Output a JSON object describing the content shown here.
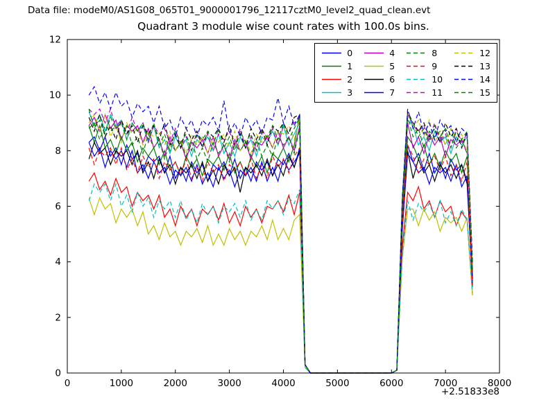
{
  "header": {
    "datafile_label": "Data file: modeM0/AS1G08_065T01_9000001796_12117cztM0_level2_quad_clean.evt"
  },
  "chart_data": {
    "type": "line",
    "title": "Quadrant 3 module wise count rates with 100.0s bins.",
    "xlabel": "",
    "ylabel": "",
    "x_offset_label": "+2.51833e8",
    "xlim": [
      0,
      8000
    ],
    "ylim": [
      0,
      12
    ],
    "xticks": [
      0,
      1000,
      2000,
      3000,
      4000,
      5000,
      6000,
      7000,
      8000
    ],
    "yticks": [
      0,
      2,
      4,
      6,
      8,
      10,
      12
    ],
    "grid": false,
    "legend_position": "upper right inside, 4 columns",
    "x_start": 400,
    "x_step": 100,
    "series": [
      {
        "name": "0",
        "color": "#0000ff",
        "dash": false,
        "values": [
          8.3,
          8.5,
          8.0,
          8.5,
          7.8,
          8.1,
          7.5,
          8.2,
          7.7,
          7.9,
          7.3,
          7.8,
          7.6,
          7.8,
          7.2,
          7.8,
          7.0,
          7.4,
          6.9,
          7.6,
          7.2,
          7.5,
          6.9,
          7.5,
          7.3,
          7.6,
          7.1,
          7.7,
          7.0,
          7.4,
          6.9,
          7.6,
          7.3,
          7.6,
          7.1,
          7.7,
          7.5,
          7.9,
          7.4,
          8.1,
          0.3,
          0,
          0,
          0,
          0,
          0,
          0,
          0,
          0,
          0,
          0,
          0,
          0,
          0,
          0,
          0,
          0,
          0.1,
          5.3,
          8.2,
          7.6,
          7.9,
          7.3,
          7.9,
          7.2,
          7.6,
          7.0,
          7.7,
          7.3,
          7.5,
          6.9,
          3.2
        ]
      },
      {
        "name": "1",
        "color": "#008000",
        "dash": false,
        "values": [
          8.9,
          8.3,
          8.9,
          8.1,
          8.4,
          7.9,
          8.5,
          8.0,
          8.3,
          7.6,
          8.1,
          7.8,
          8.1,
          7.5,
          8.0,
          7.3,
          7.6,
          7.1,
          7.8,
          7.4,
          7.7,
          7.1,
          7.7,
          7.5,
          7.8,
          7.3,
          7.9,
          7.2,
          7.6,
          7.1,
          7.8,
          7.4,
          7.8,
          7.2,
          7.9,
          7.7,
          8.1,
          7.6,
          8.2,
          9.3,
          0.3,
          0,
          0,
          0,
          0,
          0,
          0,
          0,
          0,
          0,
          0,
          0,
          0,
          0,
          0,
          0,
          0,
          0.1,
          5.5,
          8.5,
          8.2,
          7.7,
          8.2,
          7.5,
          7.9,
          7.4,
          8.0,
          7.6,
          7.9,
          7.2,
          7.8,
          3.4
        ]
      },
      {
        "name": "2",
        "color": "#ff0000",
        "dash": false,
        "values": [
          6.9,
          7.2,
          6.6,
          6.9,
          6.4,
          7.0,
          6.5,
          6.7,
          6.0,
          6.5,
          6.2,
          6.4,
          5.9,
          6.4,
          5.6,
          5.9,
          5.3,
          6.0,
          5.6,
          5.9,
          5.3,
          5.9,
          5.7,
          6.0,
          5.5,
          6.1,
          5.4,
          5.8,
          5.3,
          6.0,
          5.6,
          5.9,
          5.4,
          6.0,
          5.9,
          6.2,
          5.8,
          6.4,
          5.7,
          6.5,
          0.2,
          0,
          0,
          0,
          0,
          0,
          0,
          0,
          0,
          0,
          0,
          0,
          0,
          0,
          0,
          0,
          0,
          0.1,
          4.5,
          6.5,
          6.2,
          6.7,
          5.9,
          6.2,
          5.6,
          6.2,
          5.8,
          6.0,
          5.3,
          5.8,
          5.5,
          2.8
        ]
      },
      {
        "name": "3",
        "color": "#00bfbf",
        "dash": false,
        "values": [
          9.4,
          8.9,
          9.3,
          8.7,
          9.3,
          8.9,
          9.1,
          8.4,
          9.0,
          8.7,
          8.9,
          8.3,
          8.9,
          8.1,
          8.4,
          7.9,
          8.5,
          8.1,
          8.4,
          7.8,
          8.4,
          8.2,
          8.5,
          8.0,
          8.6,
          7.9,
          8.3,
          7.8,
          8.5,
          8.1,
          8.4,
          7.8,
          8.5,
          8.3,
          8.7,
          8.2,
          8.9,
          8.2,
          8.6,
          9.0,
          0.3,
          0,
          0,
          0,
          0,
          0,
          0,
          0,
          0,
          0,
          0,
          0,
          0,
          0,
          0,
          0,
          0,
          0.1,
          6.0,
          9.1,
          8.9,
          8.2,
          8.5,
          8.0,
          8.7,
          8.3,
          8.5,
          7.9,
          8.5,
          8.2,
          8.5,
          3.6
        ]
      },
      {
        "name": "4",
        "color": "#bf00bf",
        "dash": false,
        "values": [
          8.9,
          9.2,
          8.7,
          9.3,
          8.8,
          9.1,
          8.4,
          8.9,
          8.7,
          8.9,
          8.3,
          8.8,
          8.1,
          8.4,
          7.8,
          8.5,
          8.0,
          8.3,
          7.7,
          8.3,
          8.1,
          8.4,
          7.9,
          8.5,
          7.8,
          8.2,
          7.7,
          8.4,
          8.0,
          8.3,
          7.7,
          8.3,
          8.2,
          8.5,
          8.1,
          8.7,
          8.1,
          8.5,
          8.0,
          8.9,
          0.3,
          0,
          0,
          0,
          0,
          0,
          0,
          0,
          0,
          0,
          0,
          0,
          0,
          0,
          0,
          0,
          0,
          0.1,
          5.9,
          9.0,
          8.1,
          8.5,
          7.9,
          8.6,
          8.2,
          8.5,
          7.8,
          8.4,
          8.2,
          8.4,
          7.9,
          3.5
        ]
      },
      {
        "name": "5",
        "color": "#bfbf00",
        "dash": false,
        "values": [
          6.3,
          5.7,
          6.3,
          5.9,
          6.1,
          5.4,
          5.9,
          5.6,
          5.9,
          5.3,
          5.8,
          5.0,
          5.3,
          4.8,
          5.4,
          4.9,
          5.1,
          4.6,
          5.1,
          4.9,
          5.2,
          4.7,
          5.3,
          4.6,
          5.0,
          4.6,
          5.2,
          4.8,
          5.1,
          4.6,
          5.1,
          4.9,
          5.3,
          4.8,
          5.5,
          4.8,
          5.2,
          4.8,
          5.5,
          5.7,
          0.2,
          0,
          0,
          0,
          0,
          0,
          0,
          0,
          0,
          0,
          0,
          0,
          0,
          0,
          0,
          0,
          0,
          0.1,
          4.1,
          5.9,
          5.9,
          5.3,
          5.9,
          5.5,
          5.8,
          5.1,
          5.6,
          5.4,
          5.6,
          5.1,
          5.6,
          2.8
        ]
      },
      {
        "name": "6",
        "color": "#000000",
        "dash": false,
        "values": [
          7.7,
          8.3,
          7.9,
          8.1,
          7.5,
          8.0,
          7.8,
          8.0,
          7.5,
          8.0,
          7.2,
          7.6,
          7.0,
          7.7,
          7.2,
          7.5,
          6.8,
          7.4,
          7.2,
          7.5,
          7.0,
          7.6,
          6.9,
          7.3,
          6.8,
          7.5,
          7.1,
          7.4,
          6.5,
          7.4,
          7.2,
          7.5,
          7.1,
          7.7,
          7.1,
          7.5,
          7.1,
          7.8,
          7.4,
          8.0,
          0.3,
          0,
          0,
          0,
          0,
          0,
          0,
          0,
          0,
          0,
          0,
          0,
          0,
          0,
          0,
          0,
          0,
          0.1,
          5.2,
          8.0,
          7.0,
          7.7,
          7.2,
          7.5,
          6.9,
          7.5,
          7.2,
          7.5,
          7.0,
          7.5,
          6.8,
          3.3
        ]
      },
      {
        "name": "7",
        "color": "#0000ff",
        "dash": false,
        "values": [
          8.3,
          7.8,
          8.1,
          7.4,
          8.0,
          7.7,
          8.0,
          7.4,
          8.0,
          7.2,
          7.5,
          7.0,
          7.6,
          7.2,
          7.4,
          6.8,
          7.3,
          7.1,
          7.4,
          6.9,
          7.5,
          6.8,
          7.2,
          6.7,
          7.4,
          7.0,
          7.3,
          6.7,
          7.3,
          7.1,
          7.4,
          6.9,
          7.6,
          6.9,
          7.4,
          6.9,
          7.7,
          7.3,
          7.6,
          7.9,
          0.3,
          0,
          0,
          0,
          0,
          0,
          0,
          0,
          0,
          0,
          0,
          0,
          0,
          0,
          0,
          0,
          0,
          0.1,
          5.1,
          7.9,
          7.6,
          7.2,
          7.4,
          6.8,
          7.4,
          7.2,
          7.4,
          6.9,
          7.5,
          6.7,
          7.1,
          3.1
        ]
      },
      {
        "name": "8",
        "color": "#008000",
        "dash": true,
        "values": [
          8.8,
          9.0,
          8.4,
          8.9,
          8.7,
          8.9,
          8.4,
          8.9,
          8.2,
          8.5,
          7.9,
          8.6,
          8.1,
          8.4,
          7.7,
          8.3,
          8.0,
          8.3,
          7.8,
          8.4,
          7.7,
          8.1,
          7.6,
          8.3,
          7.9,
          8.2,
          7.6,
          8.2,
          8.0,
          8.3,
          7.8,
          8.4,
          7.8,
          8.2,
          7.8,
          8.5,
          8.2,
          8.5,
          7.9,
          8.8,
          0.3,
          0,
          0,
          0,
          0,
          0,
          0,
          0,
          0,
          0,
          0,
          0,
          0,
          0,
          0,
          0,
          0,
          0.1,
          6.0,
          9.2,
          8.5,
          8.8,
          8.1,
          8.7,
          8.5,
          8.7,
          8.2,
          8.8,
          8.1,
          8.4,
          7.9,
          3.7
        ]
      },
      {
        "name": "9",
        "color": "#ff0000",
        "dash": true,
        "values": [
          8.1,
          7.5,
          8.0,
          7.8,
          8.1,
          7.5,
          8.1,
          7.3,
          7.7,
          7.2,
          7.8,
          7.4,
          7.7,
          7.0,
          7.6,
          7.3,
          7.6,
          7.1,
          7.7,
          7.0,
          7.4,
          6.9,
          7.6,
          7.2,
          7.5,
          6.9,
          7.5,
          7.3,
          7.6,
          7.1,
          7.7,
          7.0,
          7.5,
          7.0,
          7.8,
          7.4,
          7.7,
          7.2,
          7.8,
          8.1,
          0.3,
          0,
          0,
          0,
          0,
          0,
          0,
          0,
          0,
          0,
          0,
          0,
          0,
          0,
          0,
          0,
          0,
          0.1,
          5.3,
          8.2,
          7.8,
          7.2,
          7.7,
          7.5,
          7.8,
          7.3,
          7.8,
          7.1,
          7.5,
          6.9,
          7.6,
          3.0
        ]
      },
      {
        "name": "10",
        "color": "#00bfbf",
        "dash": true,
        "values": [
          6.2,
          6.8,
          6.5,
          6.8,
          6.2,
          6.8,
          6.0,
          6.4,
          5.8,
          6.5,
          6.0,
          6.3,
          5.6,
          6.2,
          5.9,
          6.2,
          5.6,
          6.2,
          5.5,
          5.9,
          5.4,
          6.1,
          5.7,
          6.0,
          5.4,
          6.0,
          5.8,
          6.1,
          5.6,
          6.2,
          5.5,
          5.9,
          5.5,
          6.2,
          5.9,
          6.2,
          5.7,
          6.3,
          6.1,
          6.6,
          0.2,
          0,
          0,
          0,
          0,
          0,
          0,
          0,
          0,
          0,
          0,
          0,
          0,
          0,
          0,
          0,
          0,
          0.1,
          4.2,
          6.2,
          5.5,
          6.1,
          5.8,
          6.1,
          5.6,
          6.2,
          5.4,
          5.8,
          5.3,
          5.9,
          5.5,
          2.9
        ]
      },
      {
        "name": "11",
        "color": "#bf00bf",
        "dash": true,
        "values": [
          9.5,
          9.3,
          9.5,
          9.0,
          9.5,
          8.8,
          9.1,
          8.6,
          9.2,
          8.7,
          9.0,
          8.3,
          8.9,
          8.6,
          8.8,
          8.3,
          8.8,
          8.1,
          8.5,
          8.0,
          8.7,
          8.3,
          8.6,
          8.0,
          8.6,
          8.4,
          8.7,
          8.2,
          8.8,
          8.1,
          8.5,
          8.0,
          8.8,
          8.4,
          8.8,
          8.2,
          8.9,
          8.7,
          9.0,
          9.2,
          0.3,
          0,
          0,
          0,
          0,
          0,
          0,
          0,
          0,
          0,
          0,
          0,
          0,
          0,
          0,
          0,
          0,
          0.1,
          6.1,
          9.3,
          8.9,
          8.7,
          8.9,
          8.4,
          9.0,
          8.3,
          8.6,
          8.1,
          8.8,
          8.3,
          8.6,
          3.8
        ]
      },
      {
        "name": "12",
        "color": "#bfbf00",
        "dash": true,
        "values": [
          9.0,
          9.3,
          8.7,
          9.3,
          8.5,
          8.9,
          8.3,
          9.0,
          8.6,
          8.8,
          8.2,
          8.7,
          8.5,
          8.7,
          8.2,
          8.7,
          8.0,
          8.4,
          7.9,
          8.6,
          8.2,
          8.5,
          7.9,
          8.5,
          8.3,
          8.6,
          8.1,
          8.7,
          8.0,
          8.4,
          7.9,
          8.6,
          8.3,
          8.6,
          8.1,
          8.7,
          8.6,
          8.9,
          8.4,
          9.1,
          0.3,
          0,
          0,
          0,
          0,
          0,
          0,
          0,
          0,
          0,
          0,
          0,
          0,
          0,
          0,
          0,
          0,
          0.1,
          6.2,
          9.4,
          8.8,
          9.1,
          8.5,
          9.1,
          8.3,
          8.7,
          8.2,
          8.8,
          8.4,
          8.6,
          8.0,
          3.9
        ]
      },
      {
        "name": "13",
        "color": "#000000",
        "dash": true,
        "values": [
          9.2,
          8.7,
          9.3,
          8.5,
          8.9,
          8.4,
          9.1,
          8.6,
          8.9,
          8.3,
          8.9,
          8.6,
          8.9,
          8.4,
          9.0,
          8.2,
          8.6,
          8.1,
          8.8,
          8.4,
          8.7,
          8.1,
          8.7,
          8.5,
          8.8,
          8.3,
          8.9,
          8.2,
          8.6,
          8.1,
          8.8,
          8.4,
          8.8,
          8.2,
          8.9,
          8.7,
          9.0,
          8.6,
          9.2,
          9.3,
          0.3,
          0,
          0,
          0,
          0,
          0,
          0,
          0,
          0,
          0,
          0,
          0,
          0,
          0,
          0,
          0,
          0,
          0.1,
          6.2,
          9.4,
          9.0,
          8.7,
          9.0,
          8.5,
          8.8,
          8.3,
          9.0,
          8.5,
          8.8,
          8.1,
          8.7,
          3.9
        ]
      },
      {
        "name": "14",
        "color": "#0000ff",
        "dash": true,
        "values": [
          10.0,
          10.3,
          9.7,
          10.1,
          9.5,
          10.1,
          9.6,
          9.8,
          9.2,
          9.7,
          9.4,
          9.6,
          9.0,
          9.6,
          8.8,
          9.1,
          8.5,
          9.2,
          8.8,
          9.1,
          8.5,
          9.1,
          8.9,
          9.2,
          8.7,
          9.8,
          8.6,
          9.0,
          8.5,
          9.2,
          8.8,
          9.1,
          8.6,
          9.2,
          9.1,
          9.9,
          9.0,
          9.6,
          8.9,
          9.3,
          0.3,
          0,
          0,
          0,
          0,
          0,
          0,
          0,
          0,
          0,
          0,
          0,
          0,
          0,
          0,
          0,
          0,
          0.1,
          6.3,
          9.5,
          8.8,
          9.4,
          8.6,
          9.0,
          8.4,
          9.1,
          8.7,
          8.9,
          8.3,
          8.8,
          8.6,
          4.0
        ]
      },
      {
        "name": "15",
        "color": "#008000",
        "dash": true,
        "values": [
          9.5,
          8.8,
          9.1,
          8.6,
          9.2,
          8.8,
          9.0,
          8.4,
          9.0,
          8.7,
          9.0,
          8.4,
          9.0,
          8.2,
          8.6,
          8.0,
          8.7,
          8.3,
          8.6,
          8.0,
          8.6,
          8.4,
          8.7,
          8.2,
          8.8,
          8.1,
          8.5,
          8.0,
          8.7,
          8.3,
          8.6,
          8.0,
          8.7,
          8.5,
          8.9,
          8.4,
          9.0,
          8.4,
          8.8,
          9.2,
          0.3,
          0,
          0,
          0,
          0,
          0,
          0,
          0,
          0,
          0,
          0,
          0,
          0,
          0,
          0,
          0,
          0,
          0.1,
          6.1,
          9.3,
          9.0,
          8.5,
          8.8,
          8.3,
          8.9,
          8.5,
          8.8,
          8.1,
          8.7,
          8.4,
          8.7,
          3.7
        ]
      }
    ]
  }
}
